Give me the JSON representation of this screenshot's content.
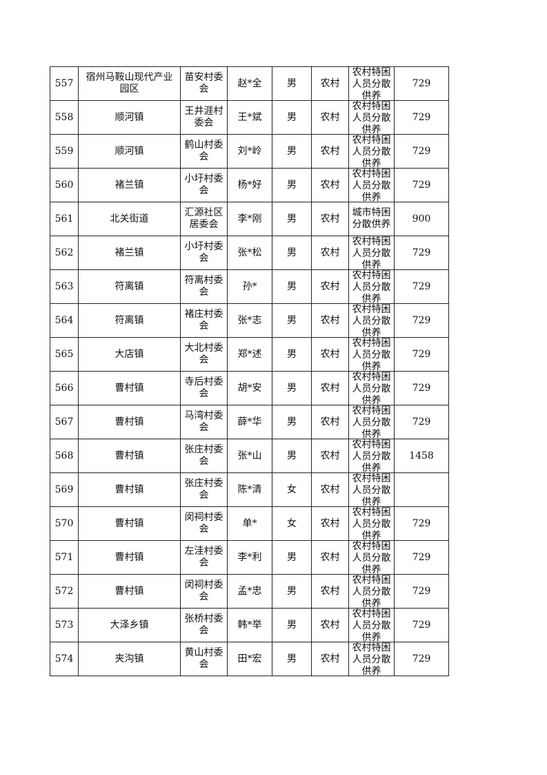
{
  "table": {
    "rows": [
      [
        "557",
        "宿州马鞍山现代产业园区",
        "苗安村委会",
        "赵*全",
        "男",
        "农村",
        "农村特困人员分散供养",
        "729"
      ],
      [
        "558",
        "顺河镇",
        "王井涯村委会",
        "王*斌",
        "男",
        "农村",
        "农村特困人员分散供养",
        "729"
      ],
      [
        "559",
        "顺河镇",
        "鹤山村委会",
        "刘*岭",
        "男",
        "农村",
        "农村特困人员分散供养",
        "729"
      ],
      [
        "560",
        "褚兰镇",
        "小圩村委会",
        "杨*好",
        "男",
        "农村",
        "农村特困人员分散供养",
        "729"
      ],
      [
        "561",
        "北关街道",
        "汇源社区居委会",
        "李*刚",
        "男",
        "农村",
        "城市特困分散供养",
        "900"
      ],
      [
        "562",
        "褚兰镇",
        "小圩村委会",
        "张*松",
        "男",
        "农村",
        "农村特困人员分散供养",
        "729"
      ],
      [
        "563",
        "符离镇",
        "符离村委会",
        "孙*",
        "男",
        "农村",
        "农村特困人员分散供养",
        "729"
      ],
      [
        "564",
        "符离镇",
        "褚庄村委会",
        "张*志",
        "男",
        "农村",
        "农村特困人员分散供养",
        "729"
      ],
      [
        "565",
        "大店镇",
        "大北村委会",
        "郑*述",
        "男",
        "农村",
        "农村特困人员分散供养",
        "729"
      ],
      [
        "566",
        "曹村镇",
        "寺后村委会",
        "胡*安",
        "男",
        "农村",
        "农村特困人员分散供养",
        "729"
      ],
      [
        "567",
        "曹村镇",
        "马湾村委会",
        "薛*华",
        "男",
        "农村",
        "农村特困人员分散供养",
        "729"
      ],
      [
        "568",
        "曹村镇",
        "张庄村委会",
        "张*山",
        "男",
        "农村",
        "农村特困人员分散供养",
        "1458"
      ],
      [
        "569",
        "曹村镇",
        "张庄村委会",
        "陈*清",
        "女",
        "农村",
        "农村特困人员分散供养",
        null
      ],
      [
        "570",
        "曹村镇",
        "闵祠村委会",
        "单*",
        "女",
        "农村",
        "农村特困人员分散供养",
        "729"
      ],
      [
        "571",
        "曹村镇",
        "左洼村委会",
        "李*利",
        "男",
        "农村",
        "农村特困人员分散供养",
        "729"
      ],
      [
        "572",
        "曹村镇",
        "闵祠村委会",
        "孟*忠",
        "男",
        "农村",
        "农村特困人员分散供养",
        "729"
      ],
      [
        "573",
        "大泽乡镇",
        "张桥村委会",
        "韩*举",
        "男",
        "农村",
        "农村特困人员分散供养",
        "729"
      ],
      [
        "574",
        "夹沟镇",
        "黄山村委会",
        "田*宏",
        "男",
        "农村",
        "农村特困人员分散供养",
        "729"
      ]
    ]
  }
}
